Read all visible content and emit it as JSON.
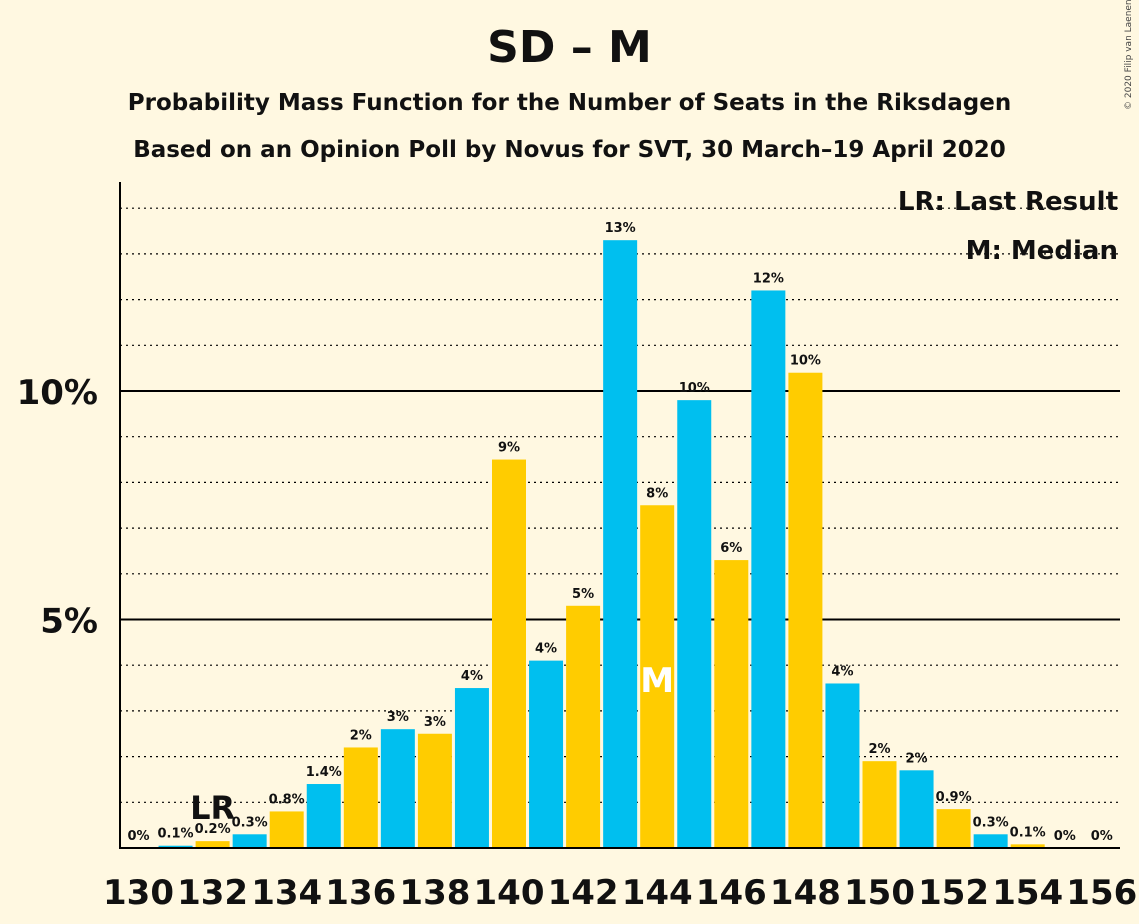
{
  "title": "SD – M",
  "subtitle1": "Probability Mass Function for the Number of Seats in the Riksdagen",
  "subtitle2": "Based on an Opinion Poll by Novus for SVT, 30 March–19 April 2020",
  "copyright": "© 2020 Filip van Laenen",
  "chart_data": {
    "type": "bar",
    "x": [
      130,
      131,
      132,
      133,
      134,
      135,
      136,
      137,
      138,
      139,
      140,
      141,
      142,
      143,
      144,
      145,
      146,
      147,
      148,
      149,
      150,
      151,
      152,
      153,
      154,
      155,
      156
    ],
    "values": [
      0,
      0.05,
      0.15,
      0.3,
      0.8,
      1.4,
      2.2,
      2.6,
      2.5,
      3.5,
      8.5,
      4.1,
      5.3,
      13.3,
      7.5,
      9.8,
      6.3,
      12.2,
      10.4,
      3.6,
      1.9,
      1.7,
      0.85,
      0.3,
      0.08,
      0,
      0
    ],
    "labels": [
      "0%",
      "0.1%",
      "0.2%",
      "0.3%",
      "0.8%",
      "1.4%",
      "2%",
      "3%",
      "3%",
      "4%",
      "9%",
      "4%",
      "5%",
      "13%",
      "8%",
      "10%",
      "6%",
      "12%",
      "10%",
      "4%",
      "2%",
      "2%",
      "0.9%",
      "0.3%",
      "0.1%",
      "0%",
      "0%"
    ],
    "xtick_labels": [
      "130",
      "132",
      "134",
      "136",
      "138",
      "140",
      "142",
      "144",
      "146",
      "148",
      "150",
      "152",
      "154",
      "156"
    ],
    "ytick_labels": [
      "5%",
      "10%"
    ],
    "ylim": [
      0,
      14.5
    ],
    "colors": {
      "odd_seat": "#00BFEF",
      "even_seat": "#FFCC00"
    },
    "last_result": {
      "seat": 132,
      "label": "LR"
    },
    "median": {
      "seat": 144,
      "label": "M"
    },
    "legend": {
      "placement": "top-right",
      "lines": [
        "LR: Last Result",
        "M: Median"
      ]
    },
    "grid": "dotted every 1%, solid at 5% and 10%"
  }
}
